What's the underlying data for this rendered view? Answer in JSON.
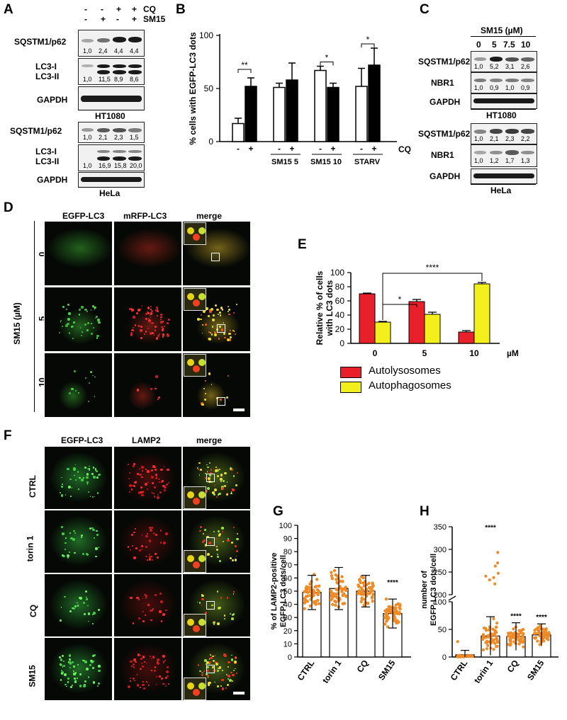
{
  "panels": [
    "A",
    "B",
    "C",
    "D",
    "E",
    "F",
    "G",
    "H"
  ],
  "A": {
    "header": {
      "cq_label": "CQ",
      "sm15_label": "SM15",
      "cq_signs": [
        "-",
        "-",
        "+",
        "+"
      ],
      "sm15_signs": [
        "-",
        "+",
        "-",
        "+"
      ]
    },
    "ht1080": {
      "cell_line": "HT1080",
      "blots": [
        {
          "label": "SQSTM1/p62",
          "quant": [
            "1,0",
            "2,4",
            "4,4",
            "4,4"
          ]
        },
        {
          "label": "LC3-I",
          "label2": "LC3-II",
          "quant": [
            "1,0",
            "11,5",
            "8,9",
            "8,6"
          ]
        },
        {
          "label": "GAPDH",
          "quant": []
        }
      ]
    },
    "hela": {
      "cell_line": "HeLa",
      "blots": [
        {
          "label": "SQSTM1/p62",
          "quant": [
            "1,0",
            "2,1",
            "2,3",
            "1,5"
          ]
        },
        {
          "label": "LC3-I",
          "label2": "LC3-II",
          "quant": [
            "1,0",
            "16,9",
            "15,8",
            "20,0"
          ]
        },
        {
          "label": "GAPDH",
          "quant": []
        }
      ]
    }
  },
  "C": {
    "header": "SM15 (µM)",
    "doses": [
      "0",
      "5",
      "7.5",
      "10"
    ],
    "ht1080": {
      "cell_line": "HT1080",
      "blots": [
        {
          "label": "SQSTM1/p62",
          "quant": [
            "1,0",
            "5,2",
            "3,1",
            "2,6"
          ]
        },
        {
          "label": "NBR1",
          "quant": [
            "1,0",
            "0,9",
            "1,0",
            "0,9"
          ]
        },
        {
          "label": "GAPDH",
          "quant": []
        }
      ]
    },
    "hela": {
      "cell_line": "HeLa",
      "blots": [
        {
          "label": "SQSTM1/p62",
          "quant": [
            "1,0",
            "2,1",
            "2,3",
            "2,2"
          ]
        },
        {
          "label": "NBR1",
          "quant": [
            "1,0",
            "1,2",
            "1,7",
            "1,3"
          ]
        },
        {
          "label": "GAPDH",
          "quant": []
        }
      ]
    }
  },
  "D": {
    "columns": [
      "EGFP-LC3",
      "mRFP-LC3",
      "merge"
    ],
    "rows": [
      "0",
      "5",
      "10"
    ],
    "side_label": "SM15 (µM)"
  },
  "F": {
    "columns": [
      "EGFP-LC3",
      "LAMP2",
      "merge"
    ],
    "rows": [
      "CTRL",
      "torin 1",
      "CQ",
      "SM15"
    ]
  },
  "chart_data": [
    {
      "panel": "B",
      "type": "bar",
      "ylabel": "% cells with EGFP-LC3 dots",
      "yticks": [
        0,
        50,
        100
      ],
      "ylim": [
        0,
        100
      ],
      "group_labels": [
        "",
        "SM15 5",
        "SM15 10",
        "STARV"
      ],
      "cq_signs": [
        "-",
        "+",
        "-",
        "+",
        "-",
        "+",
        "-",
        "+"
      ],
      "cq_label": "CQ",
      "series": [
        {
          "fill": "white",
          "values": [
            17,
            51,
            67,
            52
          ],
          "errors": [
            5,
            4,
            4,
            17
          ]
        },
        {
          "fill": "black",
          "values": [
            52,
            58,
            51,
            72
          ],
          "errors": [
            8,
            16,
            4,
            16
          ]
        }
      ],
      "significance": [
        {
          "group": 0,
          "label": "**"
        },
        {
          "group": 2,
          "label": "*"
        },
        {
          "group": 3,
          "label": "*"
        }
      ]
    },
    {
      "panel": "E",
      "type": "bar",
      "ylabel": "Relative % of cells with LC3 dots",
      "categories": [
        "0",
        "5",
        "10"
      ],
      "unit": "µM",
      "yticks": [
        0,
        20,
        40,
        60,
        80,
        100
      ],
      "ylim": [
        0,
        100
      ],
      "series": [
        {
          "name": "Autolysosomes",
          "color": "#e8202a",
          "values": [
            70,
            59,
            16
          ],
          "errors": [
            1,
            3,
            2
          ]
        },
        {
          "name": "Autophagosomes",
          "color": "#f3ef1c",
          "values": [
            30,
            41,
            84
          ],
          "errors": [
            1,
            3,
            2
          ]
        }
      ],
      "significance": [
        {
          "label": "*"
        },
        {
          "label": "****"
        }
      ],
      "legend_position": "bottom"
    },
    {
      "panel": "G",
      "type": "scatter",
      "ylabel": "% of LAMP2-positive EGFP-LC3 dots/cell",
      "categories": [
        "CTRL",
        "torin 1",
        "CQ",
        "SM15"
      ],
      "yticks": [
        0,
        10,
        20,
        30,
        40,
        50,
        60,
        70,
        80,
        90,
        100
      ],
      "ylim": [
        0,
        100
      ],
      "means": [
        49,
        52,
        50,
        33
      ],
      "sd": [
        13,
        16,
        12,
        11
      ],
      "significance": [
        "",
        "",
        "",
        "****"
      ],
      "point_color": "#f08a24"
    },
    {
      "panel": "H",
      "type": "scatter",
      "ylabel": "number of EGFP-LC3 dots/cell",
      "categories": [
        "CTRL",
        "torin 1",
        "CQ",
        "SM15"
      ],
      "yticks_lower": [
        0,
        50,
        100
      ],
      "yticks_upper": [
        200,
        250,
        300,
        350
      ],
      "means": [
        4,
        38,
        37,
        40
      ],
      "sd": [
        8,
        35,
        25,
        20
      ],
      "significance": [
        "",
        "****",
        "****",
        "****"
      ],
      "point_color": "#f08a24"
    }
  ]
}
